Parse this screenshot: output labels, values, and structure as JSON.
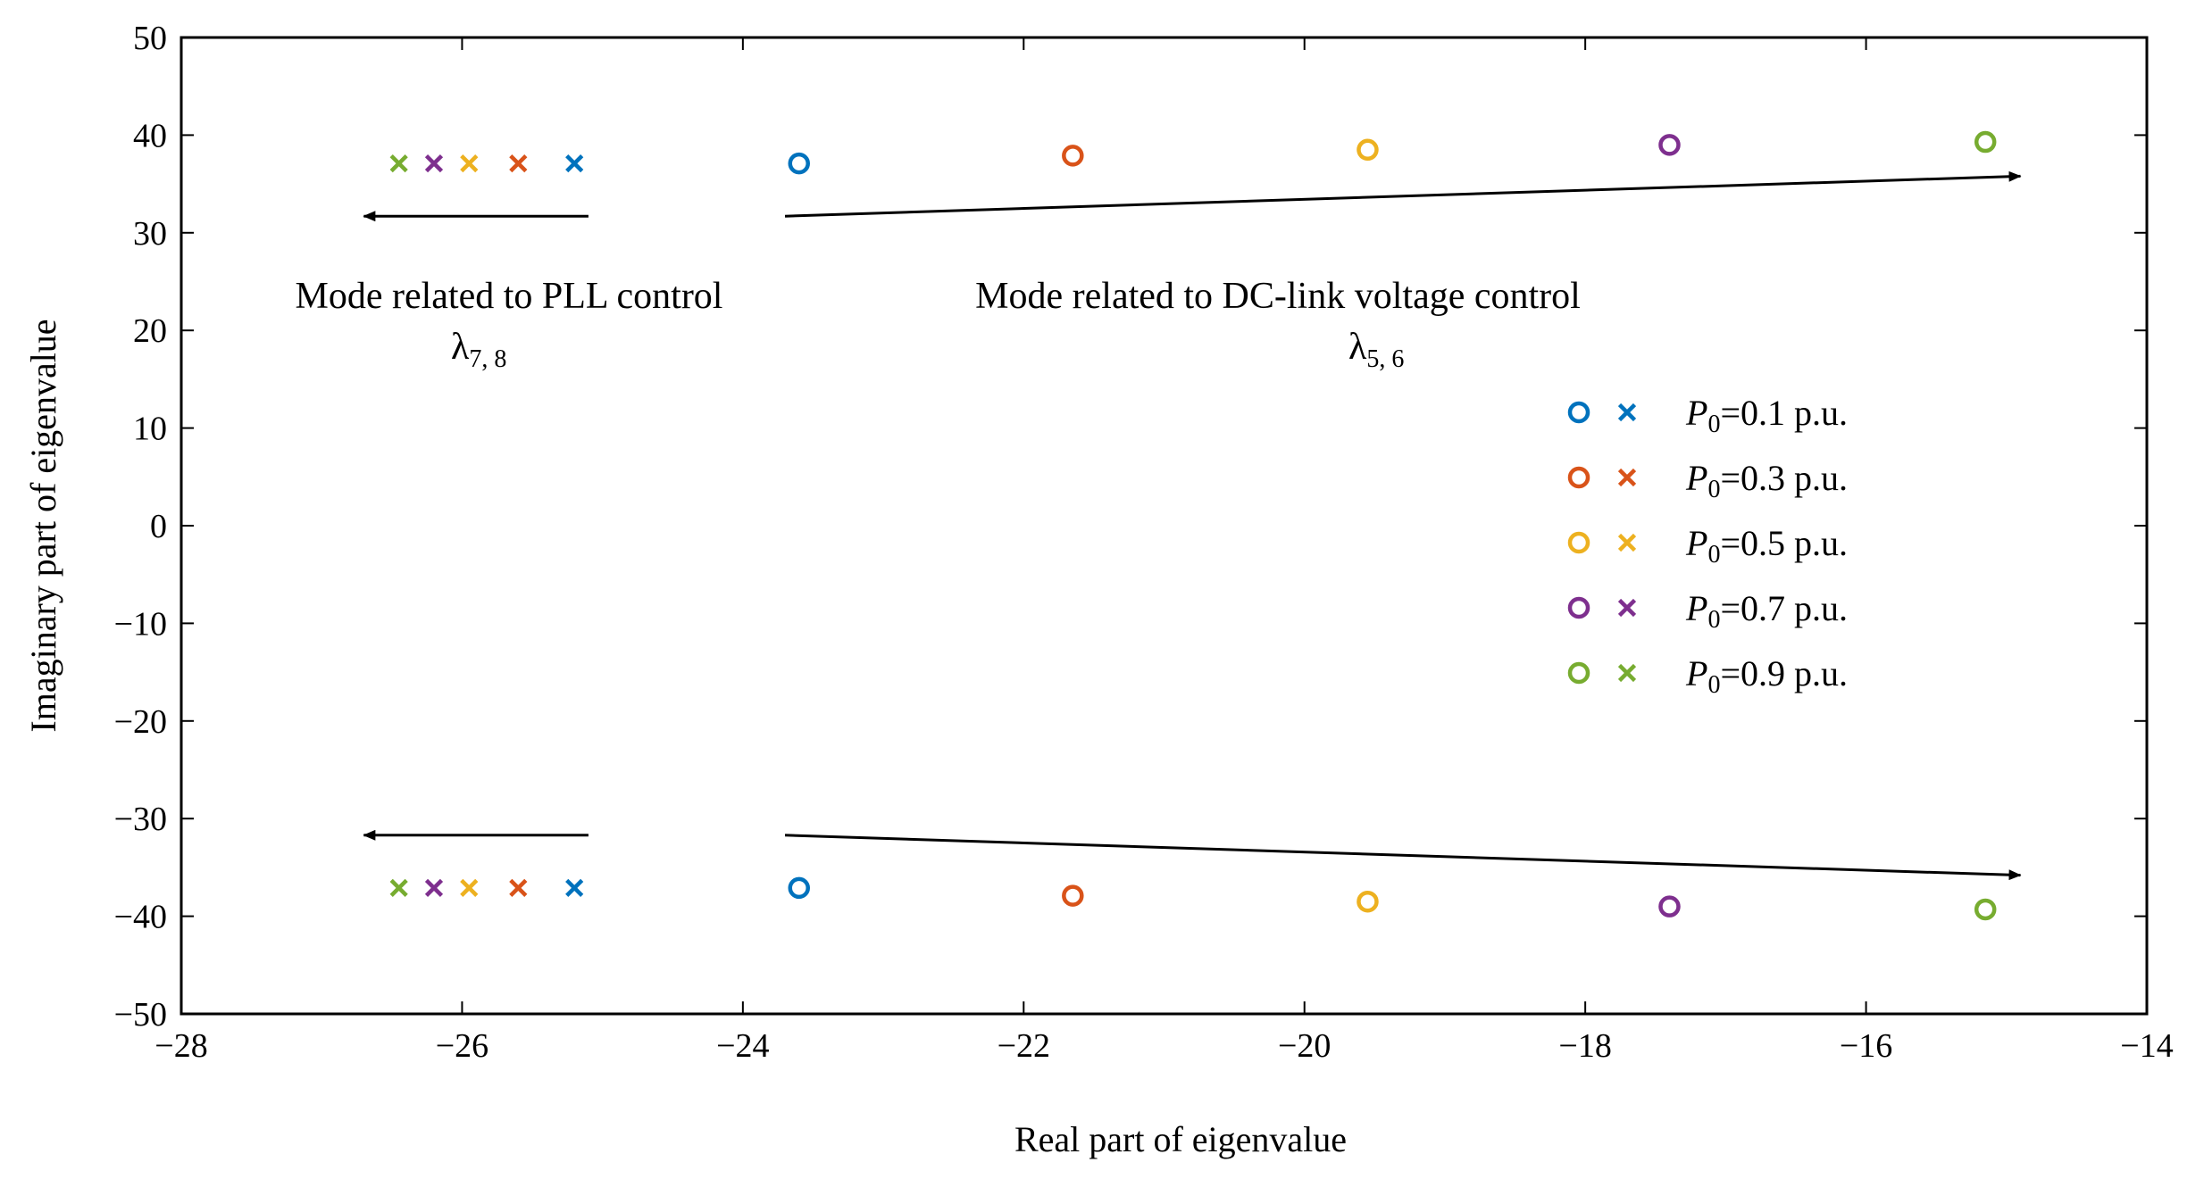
{
  "chart_data": {
    "type": "scatter",
    "title": "",
    "xlabel": "Real part of eigenvalue",
    "ylabel": "Imaginary part of eigenvalue",
    "xlim": [
      -28,
      -14
    ],
    "ylim": [
      -50,
      50
    ],
    "xticks": [
      -28,
      -26,
      -24,
      -22,
      -20,
      -18,
      -16,
      -14
    ],
    "yticks": [
      -50,
      -40,
      -30,
      -20,
      -10,
      0,
      10,
      20,
      30,
      40,
      50
    ],
    "xtick_labels": [
      "−28",
      "−26",
      "−24",
      "−22",
      "−20",
      "−18",
      "−16",
      "−14"
    ],
    "ytick_labels": [
      "−50",
      "−40",
      "−30",
      "−20",
      "−10",
      "0",
      "10",
      "20",
      "30",
      "40",
      "50"
    ],
    "grid": false,
    "legend_position": "right-middle",
    "series": [
      {
        "name": "P0=0.1 p.u.",
        "legend_prefix": "P",
        "legend_sub": "0",
        "legend_suffix": "=0.1 p.u.",
        "color": "#0072BD",
        "circle_points": [
          [
            -23.6,
            37.1
          ],
          [
            -23.6,
            -37.1
          ]
        ],
        "cross_points": [
          [
            -25.2,
            37.1
          ],
          [
            -25.2,
            -37.1
          ]
        ]
      },
      {
        "name": "P0=0.3 p.u.",
        "legend_prefix": "P",
        "legend_sub": "0",
        "legend_suffix": "=0.3 p.u.",
        "color": "#D95319",
        "circle_points": [
          [
            -21.65,
            37.9
          ],
          [
            -21.65,
            -37.9
          ]
        ],
        "cross_points": [
          [
            -25.6,
            37.1
          ],
          [
            -25.6,
            -37.1
          ]
        ]
      },
      {
        "name": "P0=0.5 p.u.",
        "legend_prefix": "P",
        "legend_sub": "0",
        "legend_suffix": "=0.5 p.u.",
        "color": "#EDB120",
        "circle_points": [
          [
            -19.55,
            38.5
          ],
          [
            -19.55,
            -38.5
          ]
        ],
        "cross_points": [
          [
            -25.95,
            37.1
          ],
          [
            -25.95,
            -37.1
          ]
        ]
      },
      {
        "name": "P0=0.7 p.u.",
        "legend_prefix": "P",
        "legend_sub": "0",
        "legend_suffix": "=0.7 p.u.",
        "color": "#7E2F8E",
        "circle_points": [
          [
            -17.4,
            39.0
          ],
          [
            -17.4,
            -39.0
          ]
        ],
        "cross_points": [
          [
            -26.2,
            37.1
          ],
          [
            -26.2,
            -37.1
          ]
        ]
      },
      {
        "name": "P0=0.9 p.u.",
        "legend_prefix": "P",
        "legend_sub": "0",
        "legend_suffix": "=0.9 p.u.",
        "color": "#77AC30",
        "circle_points": [
          [
            -15.15,
            39.3
          ],
          [
            -15.15,
            -39.3
          ]
        ],
        "cross_points": [
          [
            -26.45,
            37.1
          ],
          [
            -26.45,
            -37.1
          ]
        ]
      }
    ],
    "arrows": [
      {
        "name": "pll-arrow-upper",
        "from": [
          -25.1,
          31.7
        ],
        "to": [
          -26.7,
          31.7
        ]
      },
      {
        "name": "dc-arrow-upper",
        "from": [
          -23.7,
          31.7
        ],
        "to": [
          -14.9,
          35.8
        ]
      },
      {
        "name": "pll-arrow-lower",
        "from": [
          -25.1,
          -31.7
        ],
        "to": [
          -26.7,
          -31.7
        ]
      },
      {
        "name": "dc-arrow-lower",
        "from": [
          -23.7,
          -31.7
        ],
        "to": [
          -14.9,
          -35.8
        ]
      }
    ],
    "annotations": [
      {
        "name": "pll-mode-label",
        "text": "Mode related to PLL control",
        "symbol": "λ",
        "sub": "7, 8"
      },
      {
        "name": "dc-mode-label",
        "text": "Mode related to DC-link voltage control",
        "symbol": "λ",
        "sub": "5, 6"
      }
    ]
  }
}
